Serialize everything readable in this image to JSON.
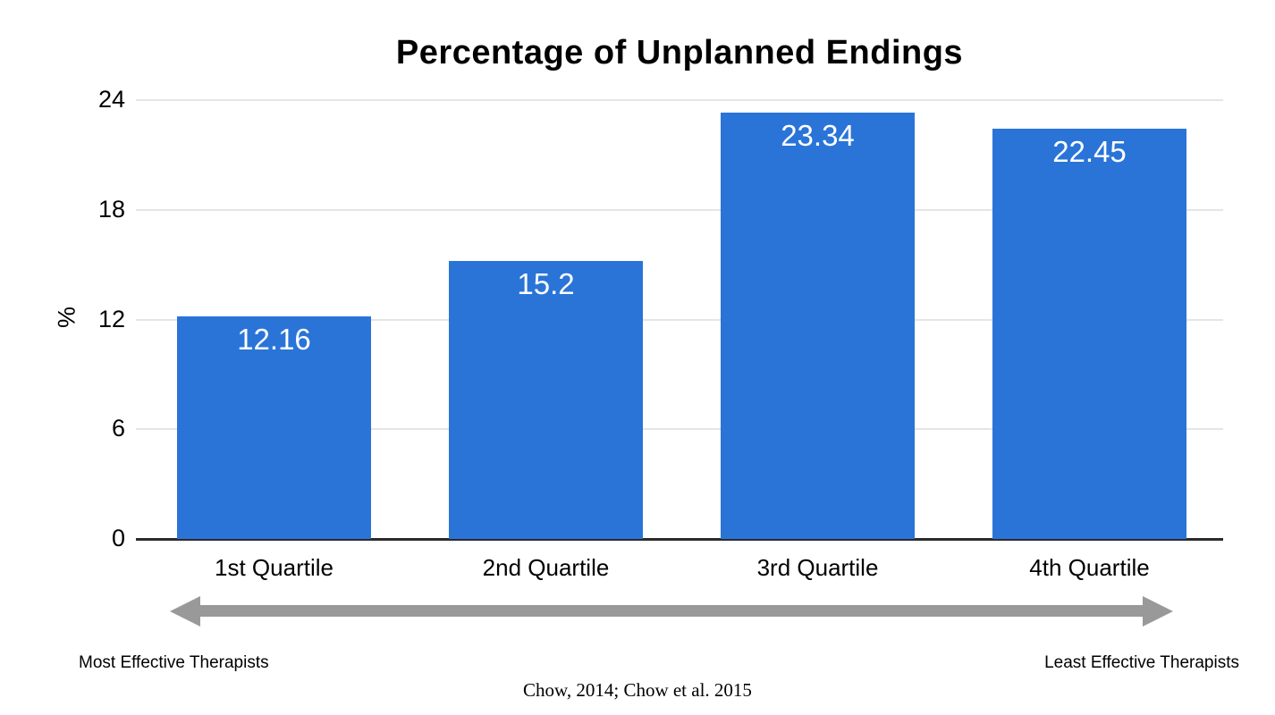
{
  "page": {
    "background_color": "#FFFFFF"
  },
  "chart_data": {
    "type": "bar",
    "title": "Percentage of Unplanned Endings",
    "ylabel": "%",
    "xlabel": "",
    "categories": [
      "1st Quartile",
      "2nd Quartile",
      "3rd Quartile",
      "4th Quartile"
    ],
    "values": [
      12.16,
      15.2,
      23.34,
      22.45
    ],
    "value_labels": [
      "12.16",
      "15.2",
      "23.34",
      "22.45"
    ],
    "yticks": [
      0,
      6,
      12,
      18,
      24
    ],
    "ylim": [
      0,
      24
    ],
    "grid": "horizontal gridlines at each y tick, light gray",
    "legend": "none",
    "bar_color": "#2A74D8",
    "value_label_color": "#FFFFFF",
    "gridline_color": "#E5E5E5",
    "axis_color": "#2B2B2B"
  },
  "annotations": {
    "arrow": {
      "direction": "double-headed horizontal",
      "color": "#999999",
      "left_label": "Most Effective Therapists",
      "right_label": "Least Effective Therapists"
    },
    "citation": "Chow, 2014; Chow et al. 2015"
  }
}
